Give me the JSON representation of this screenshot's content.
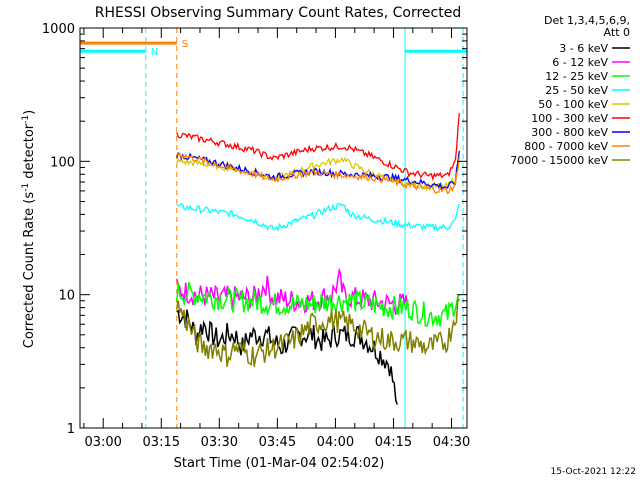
{
  "chart_data": {
    "type": "line",
    "title": "RHESSI Observing Summary Count Rates, Corrected",
    "xlabel": "Start Time (01-Mar-04 02:54:02)",
    "ylabel_main": "Corrected Count Rate (s",
    "ylabel_sup1": "-1",
    "ylabel_mid": " detector",
    "ylabel_sup2": "-1",
    "ylabel_end": ")",
    "yscale": "log",
    "ylim": [
      1,
      1000
    ],
    "xlim_minutes": [
      0,
      100
    ],
    "x_ticks": [
      {
        "minute": 6,
        "label": "03:00"
      },
      {
        "minute": 21,
        "label": "03:15"
      },
      {
        "minute": 36,
        "label": "03:30"
      },
      {
        "minute": 51,
        "label": "03:45"
      },
      {
        "minute": 66,
        "label": "04:00"
      },
      {
        "minute": 81,
        "label": "04:15"
      },
      {
        "minute": 96,
        "label": "04:30"
      }
    ],
    "y_ticks": [
      {
        "value": 1,
        "label": "1"
      },
      {
        "value": 10,
        "label": "10"
      },
      {
        "value": 100,
        "label": "100"
      },
      {
        "value": 1000,
        "label": "1000"
      }
    ],
    "legend_header": [
      "Det 1,3,4,5,6,9,",
      "Att 0"
    ],
    "series": [
      {
        "name": "3 - 6 keV",
        "color": "#000000",
        "x": [
          25,
          28,
          30,
          32,
          34,
          36,
          38,
          40,
          42,
          44,
          46,
          48,
          50,
          52,
          54,
          56,
          58,
          60,
          62,
          64,
          66,
          68,
          70,
          72,
          74,
          76,
          78,
          80,
          82
        ],
        "y": [
          7.5,
          6.5,
          5,
          6,
          5,
          4.5,
          5,
          5,
          4,
          5,
          5,
          5,
          4.5,
          4,
          4.5,
          5,
          5,
          5,
          4.5,
          4.5,
          5,
          5,
          5,
          5,
          4.5,
          4,
          3.5,
          3,
          1.5
        ]
      },
      {
        "name": "6 - 12 keV",
        "color": "#ff00ff",
        "x": [
          25,
          30,
          35,
          40,
          45,
          48,
          50,
          55,
          60,
          65,
          67,
          68,
          70,
          75,
          80,
          85
        ],
        "y": [
          11,
          10,
          9.5,
          9.5,
          9.5,
          12,
          9.5,
          9,
          9,
          10,
          13,
          10,
          9.5,
          9,
          8.5,
          8.5
        ]
      },
      {
        "name": "12 - 25 keV",
        "color": "#00ff00",
        "x": [
          25,
          30,
          35,
          40,
          45,
          50,
          55,
          60,
          65,
          70,
          75,
          80,
          85,
          90,
          95,
          98
        ],
        "y": [
          10.5,
          10,
          9.5,
          9,
          9,
          8.5,
          8.5,
          8.5,
          9,
          9,
          8.5,
          8,
          8,
          7,
          7,
          10
        ]
      },
      {
        "name": "25 - 50 keV",
        "color": "#00ffff",
        "x": [
          25,
          30,
          35,
          40,
          45,
          50,
          55,
          60,
          65,
          68,
          70,
          75,
          80,
          85,
          90,
          95,
          97,
          98
        ],
        "y": [
          46,
          44,
          42,
          40,
          36,
          31,
          35,
          39,
          45,
          47,
          40,
          37,
          35,
          33,
          32,
          32,
          36,
          48
        ]
      },
      {
        "name": "50 - 100 keV",
        "color": "#dcc800",
        "x": [
          25,
          30,
          35,
          40,
          45,
          50,
          55,
          60,
          65,
          68,
          70,
          75,
          80,
          85,
          90,
          95,
          97,
          98
        ],
        "y": [
          100,
          97,
          93,
          88,
          82,
          74,
          82,
          92,
          100,
          104,
          95,
          82,
          73,
          67,
          65,
          65,
          75,
          110
        ]
      },
      {
        "name": "100 - 300 keV",
        "color": "#ff0000",
        "x": [
          25,
          30,
          35,
          40,
          45,
          50,
          55,
          60,
          65,
          68,
          70,
          75,
          80,
          85,
          90,
          95,
          97,
          98
        ],
        "y": [
          160,
          150,
          140,
          130,
          120,
          105,
          115,
          125,
          128,
          130,
          125,
          110,
          95,
          82,
          78,
          78,
          100,
          230
        ]
      },
      {
        "name": "300 - 800 keV",
        "color": "#0000ff",
        "x": [
          25,
          30,
          35,
          40,
          45,
          50,
          55,
          60,
          65,
          70,
          75,
          80,
          85,
          90,
          95,
          97,
          98
        ],
        "y": [
          112,
          105,
          98,
          90,
          83,
          76,
          80,
          84,
          82,
          80,
          78,
          76,
          72,
          68,
          64,
          70,
          120
        ]
      },
      {
        "name": "800 - 7000 keV",
        "color": "#ff8000",
        "x": [
          25,
          30,
          35,
          40,
          45,
          50,
          55,
          60,
          65,
          70,
          75,
          80,
          85,
          90,
          95,
          97,
          98
        ],
        "y": [
          115,
          104,
          95,
          87,
          80,
          73,
          78,
          83,
          80,
          78,
          76,
          72,
          66,
          62,
          60,
          66,
          110
        ]
      },
      {
        "name": "7000 - 15000 keV",
        "color": "#808000",
        "x": [
          25,
          28,
          30,
          32,
          35,
          38,
          40,
          45,
          50,
          55,
          60,
          65,
          70,
          75,
          80,
          85,
          90,
          95,
          98
        ],
        "y": [
          8.5,
          6,
          4.5,
          4,
          4,
          3.5,
          4,
          3.5,
          4,
          4.5,
          6,
          6.5,
          6,
          5,
          4.5,
          4.5,
          4,
          4.5,
          9
        ]
      }
    ],
    "flags": [
      {
        "label": "S",
        "color": "#ff8000",
        "x": [
          0,
          25
        ],
        "y": 770
      },
      {
        "label": "N",
        "color": "#00ffff",
        "x": [
          0,
          17
        ],
        "y": 670
      },
      {
        "label": "",
        "color": "#00ffff",
        "x": [
          84,
          100
        ],
        "y": 670
      }
    ],
    "vlines": [
      {
        "x": 17,
        "color": "#00ffff",
        "style": "dashed"
      },
      {
        "x": 25,
        "color": "#ff8000",
        "style": "dashed"
      },
      {
        "x": 84,
        "color": "#00ffff",
        "style": "solid"
      },
      {
        "x": 99,
        "color": "#00ffff",
        "style": "dashed"
      }
    ],
    "footer": "15-Oct-2021 12:22"
  }
}
